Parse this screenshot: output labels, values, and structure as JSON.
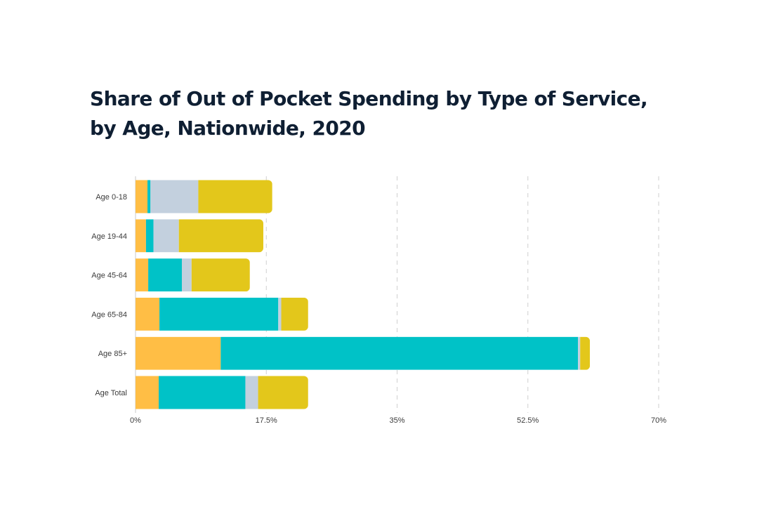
{
  "chart_data": {
    "type": "bar",
    "orientation": "horizontal",
    "stacked": true,
    "title_lines": [
      "Share of Out of Pocket Spending by Type of Service,",
      "by Age, Nationwide, 2020"
    ],
    "categories": [
      "Age 0-18",
      "Age 19-44",
      "Age 45-64",
      "Age 65-84",
      "Age 85+",
      "Age Total"
    ],
    "series": [
      {
        "color": "#ffbe45",
        "values": [
          1.6,
          1.4,
          1.7,
          3.2,
          11.4,
          3.1
        ]
      },
      {
        "color": "#00c2c7",
        "values": [
          0.4,
          1.0,
          4.5,
          15.9,
          47.8,
          11.6
        ]
      },
      {
        "color": "#c3d0de",
        "values": [
          6.4,
          3.4,
          1.3,
          0.4,
          0.3,
          1.7
        ]
      },
      {
        "color": "#e3c71b",
        "values": [
          9.9,
          11.3,
          7.8,
          3.6,
          1.3,
          6.7
        ]
      }
    ],
    "xlim": [
      0,
      70
    ],
    "x_ticks": [
      0,
      17.5,
      35,
      52.5,
      70
    ],
    "x_tick_labels": [
      "0%",
      "17.5%",
      "35%",
      "52.5%",
      "70%"
    ],
    "grid": true,
    "grid_style": "dashed-vertical",
    "legend": "none"
  }
}
